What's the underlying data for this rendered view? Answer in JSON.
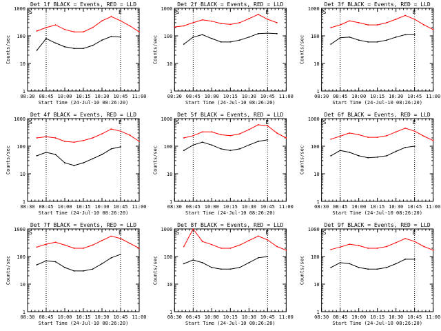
{
  "figure": {
    "x_axis_label": "Start Time (24-Jul-10 08:26:20)",
    "y_axis_label": "Counts/sec",
    "x_tick_labels": [
      "08:30",
      "08:45",
      "10:00",
      "10:15",
      "10:30",
      "10:45",
      "11:00"
    ],
    "y_tick_labels": [
      "1",
      "10",
      "100",
      "1000"
    ],
    "marker_letters": [
      "S",
      "E"
    ],
    "colors": {
      "events": "#000000",
      "lld": "#ff0000",
      "axes": "#000000",
      "background": "#ffffff"
    }
  },
  "chart_data": [
    {
      "type": "line",
      "title": "Det 1f BLACK = Events, RED = LLD",
      "ylog": true,
      "ylim": [
        1,
        1000
      ],
      "x": [
        "08:30",
        "08:37",
        "08:45",
        "08:52",
        "10:00",
        "10:07",
        "10:15",
        "10:22",
        "10:30",
        "10:37",
        "10:45",
        "10:52",
        "11:00"
      ],
      "series": [
        {
          "name": "LLD",
          "color": "#ff0000",
          "values": [
            null,
            150,
            200,
            250,
            170,
            140,
            140,
            200,
            350,
            500,
            350,
            230,
            140
          ]
        },
        {
          "name": "Events",
          "color": "#000000",
          "values": [
            null,
            30,
            80,
            55,
            40,
            35,
            35,
            45,
            70,
            95,
            90,
            null,
            null
          ]
        }
      ],
      "vlines": [
        "08:45",
        "10:45"
      ]
    },
    {
      "type": "line",
      "title": "Det 2f BLACK = Events, RED = LLD",
      "ylog": true,
      "ylim": [
        1,
        1000
      ],
      "x": [
        "08:30",
        "08:37",
        "08:45",
        "08:52",
        "10:00",
        "10:07",
        "10:15",
        "10:22",
        "10:30",
        "10:37",
        "10:45",
        "10:52",
        "11:00"
      ],
      "series": [
        {
          "name": "LLD",
          "color": "#ff0000",
          "values": [
            210,
            230,
            300,
            380,
            340,
            280,
            260,
            300,
            420,
            600,
            400,
            300,
            null
          ]
        },
        {
          "name": "Events",
          "color": "#000000",
          "values": [
            null,
            50,
            90,
            110,
            80,
            60,
            60,
            70,
            90,
            120,
            125,
            120,
            null
          ]
        }
      ],
      "vlines": [
        "08:45",
        "10:45"
      ]
    },
    {
      "type": "line",
      "title": "Det 3f BLACK = Events, RED = LLD",
      "ylog": true,
      "ylim": [
        1,
        1000
      ],
      "x": [
        "08:30",
        "08:37",
        "08:45",
        "08:52",
        "10:00",
        "10:07",
        "10:15",
        "10:22",
        "10:30",
        "10:37",
        "10:45",
        "10:52",
        "11:00"
      ],
      "series": [
        {
          "name": "LLD",
          "color": "#ff0000",
          "values": [
            null,
            200,
            250,
            350,
            300,
            250,
            250,
            300,
            400,
            550,
            400,
            250,
            170
          ]
        },
        {
          "name": "Events",
          "color": "#000000",
          "values": [
            null,
            50,
            85,
            90,
            70,
            60,
            60,
            70,
            90,
            110,
            110,
            null,
            null
          ]
        }
      ],
      "vlines": [
        "08:45",
        "10:45"
      ]
    },
    {
      "type": "line",
      "title": "Det 4f BLACK = Events, RED = LLD",
      "ylog": true,
      "ylim": [
        1,
        1000
      ],
      "x": [
        "08:30",
        "08:37",
        "08:45",
        "08:52",
        "10:00",
        "10:07",
        "10:15",
        "10:22",
        "10:30",
        "10:37",
        "10:45",
        "10:52",
        "11:00"
      ],
      "series": [
        {
          "name": "LLD",
          "color": "#ff0000",
          "values": [
            null,
            200,
            220,
            200,
            150,
            140,
            160,
            200,
            280,
            420,
            350,
            250,
            150
          ]
        },
        {
          "name": "Events",
          "color": "#000000",
          "values": [
            null,
            45,
            60,
            50,
            25,
            20,
            25,
            35,
            50,
            80,
            95,
            null,
            null
          ]
        }
      ],
      "vlines": [
        "08:45",
        "10:45"
      ]
    },
    {
      "type": "line",
      "title": "Det 5f BLACK = Events, RED = LLD",
      "ylog": true,
      "ylim": [
        1,
        1000
      ],
      "x": [
        "08:30",
        "08:37",
        "08:45",
        "08:52",
        "10:00",
        "10:07",
        "10:15",
        "10:22",
        "10:30",
        "10:37",
        "10:45",
        "10:52",
        "11:00"
      ],
      "series": [
        {
          "name": "LLD",
          "color": "#ff0000",
          "values": [
            null,
            200,
            240,
            330,
            330,
            260,
            240,
            280,
            400,
            600,
            550,
            300,
            200
          ]
        },
        {
          "name": "Events",
          "color": "#000000",
          "values": [
            null,
            70,
            110,
            140,
            110,
            80,
            70,
            80,
            110,
            150,
            170,
            null,
            null
          ]
        }
      ],
      "vlines": [
        "08:45",
        "10:45"
      ]
    },
    {
      "type": "line",
      "title": "Det 6f BLACK = Events, RED = LLD",
      "ylog": true,
      "ylim": [
        1,
        1000
      ],
      "x": [
        "08:30",
        "08:37",
        "08:45",
        "08:52",
        "10:00",
        "10:07",
        "10:15",
        "10:22",
        "10:30",
        "10:37",
        "10:45",
        "10:52",
        "11:00"
      ],
      "series": [
        {
          "name": "LLD",
          "color": "#ff0000",
          "values": [
            null,
            180,
            230,
            300,
            260,
            210,
            210,
            240,
            330,
            450,
            350,
            230,
            160
          ]
        },
        {
          "name": "Events",
          "color": "#000000",
          "values": [
            null,
            45,
            70,
            60,
            45,
            38,
            40,
            45,
            65,
            90,
            100,
            null,
            null
          ]
        }
      ],
      "vlines": [
        "08:45",
        "10:45"
      ]
    },
    {
      "type": "line",
      "title": "Det 7f BLACK = Events, RED = LLD",
      "ylog": true,
      "ylim": [
        1,
        1000
      ],
      "x": [
        "08:30",
        "08:37",
        "08:45",
        "08:52",
        "10:00",
        "10:07",
        "10:15",
        "10:22",
        "10:30",
        "10:37",
        "10:45",
        "10:52",
        "11:00"
      ],
      "series": [
        {
          "name": "LLD",
          "color": "#ff0000",
          "values": [
            null,
            220,
            280,
            330,
            260,
            200,
            200,
            260,
            380,
            550,
            450,
            300,
            200
          ]
        },
        {
          "name": "Events",
          "color": "#000000",
          "values": [
            null,
            50,
            70,
            65,
            40,
            30,
            30,
            35,
            55,
            90,
            120,
            null,
            null
          ]
        }
      ],
      "vlines": [
        "08:45",
        "10:45"
      ]
    },
    {
      "type": "line",
      "title": "Det 8f BLACK = Events, RED = LLD",
      "ylog": true,
      "ylim": [
        1,
        1000
      ],
      "x": [
        "08:30",
        "08:37",
        "08:45",
        "08:52",
        "10:00",
        "10:07",
        "10:15",
        "10:22",
        "10:30",
        "10:37",
        "10:45",
        "10:52",
        "11:00"
      ],
      "series": [
        {
          "name": "LLD",
          "color": "#ff0000",
          "values": [
            null,
            230,
            1000,
            350,
            270,
            200,
            200,
            260,
            380,
            550,
            400,
            230,
            170
          ]
        },
        {
          "name": "Events",
          "color": "#000000",
          "values": [
            null,
            55,
            75,
            60,
            40,
            35,
            35,
            40,
            60,
            90,
            100,
            null,
            null
          ]
        }
      ],
      "vlines": [
        "08:45",
        "10:45"
      ]
    },
    {
      "type": "line",
      "title": "Det 9f BLACK = Events, RED = LLD",
      "ylog": true,
      "ylim": [
        1,
        1000
      ],
      "x": [
        "08:30",
        "08:37",
        "08:45",
        "08:52",
        "10:00",
        "10:07",
        "10:15",
        "10:22",
        "10:30",
        "10:37",
        "10:45",
        "10:52",
        "11:00"
      ],
      "series": [
        {
          "name": "LLD",
          "color": "#ff0000",
          "values": [
            null,
            180,
            220,
            280,
            250,
            200,
            200,
            230,
            320,
            450,
            350,
            230,
            170
          ]
        },
        {
          "name": "Events",
          "color": "#000000",
          "values": [
            null,
            40,
            60,
            55,
            40,
            35,
            35,
            40,
            55,
            80,
            80,
            null,
            null
          ]
        }
      ],
      "vlines": [
        "08:45",
        "10:45"
      ]
    }
  ]
}
